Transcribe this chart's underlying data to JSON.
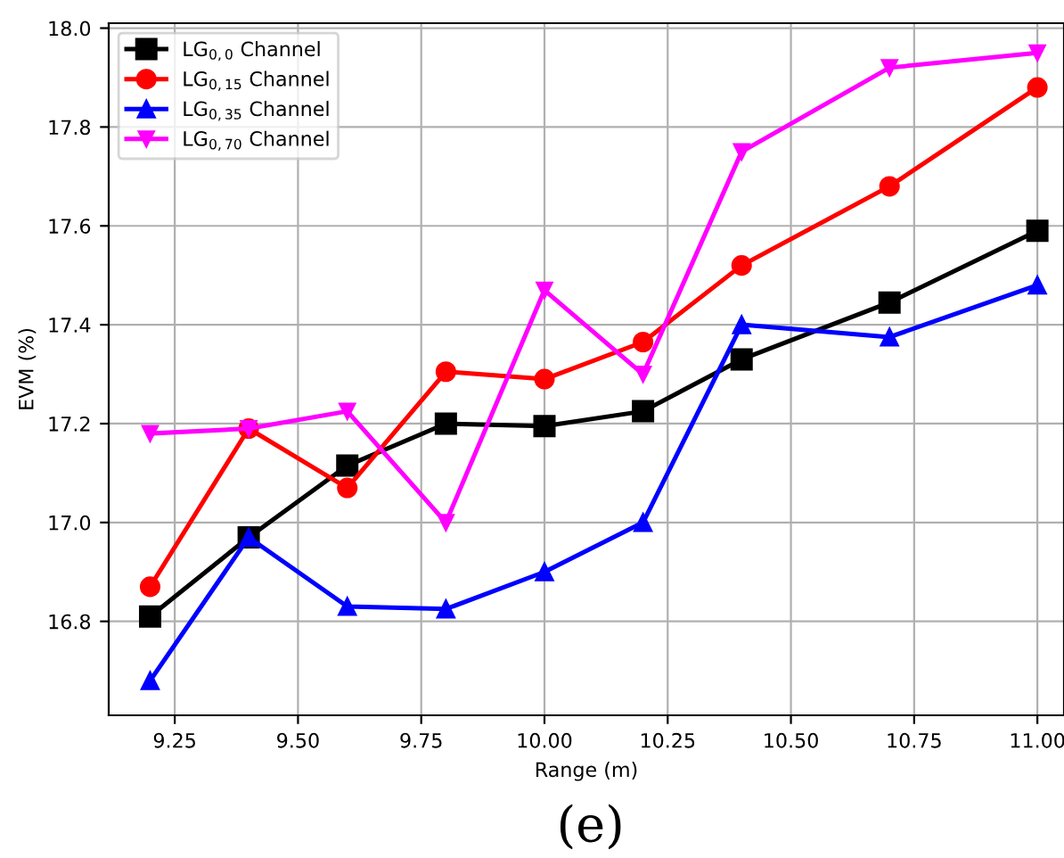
{
  "chart_data": {
    "type": "line",
    "xlabel": "Range (m)",
    "ylabel": "EVM (%)",
    "annotations": [
      "(e)"
    ],
    "x": [
      9.2,
      9.4,
      9.6,
      9.8,
      10.0,
      10.2,
      10.4,
      10.7,
      11.0
    ],
    "xlim": [
      9.116,
      11.054
    ],
    "ylim": [
      16.61,
      18.01
    ],
    "xticks": [
      {
        "value": 9.25,
        "label": "9.25"
      },
      {
        "value": 9.5,
        "label": "9.50"
      },
      {
        "value": 9.75,
        "label": "9.75"
      },
      {
        "value": 10.0,
        "label": "10.00"
      },
      {
        "value": 10.25,
        "label": "10.25"
      },
      {
        "value": 10.5,
        "label": "10.50"
      },
      {
        "value": 10.75,
        "label": "10.75"
      },
      {
        "value": 11.0,
        "label": "11.00"
      }
    ],
    "yticks": [
      {
        "value": 16.8,
        "label": "16.8"
      },
      {
        "value": 17.0,
        "label": "17.0"
      },
      {
        "value": 17.2,
        "label": "17.2"
      },
      {
        "value": 17.4,
        "label": "17.4"
      },
      {
        "value": 17.6,
        "label": "17.6"
      },
      {
        "value": 17.8,
        "label": "17.8"
      },
      {
        "value": 18.0,
        "label": "18.0"
      }
    ],
    "grid": true,
    "legend": "top left",
    "line_style": "solid",
    "series": [
      {
        "name": "LG$_{0,0}$ Channel",
        "color": "#000000",
        "marker": "square",
        "values": [
          16.81,
          16.97,
          17.115,
          17.2,
          17.195,
          17.225,
          17.33,
          17.445,
          17.59
        ]
      },
      {
        "name": "LG$_{0,15}$ Channel",
        "color": "#ff0000",
        "marker": "circle",
        "values": [
          16.87,
          17.19,
          17.07,
          17.305,
          17.29,
          17.365,
          17.52,
          17.68,
          17.88
        ]
      },
      {
        "name": "LG$_{0,35}$ Channel",
        "color": "#0000ff",
        "marker": "triangle",
        "values": [
          16.68,
          16.97,
          16.83,
          16.825,
          16.9,
          17.0,
          17.4,
          17.375,
          17.48
        ]
      },
      {
        "name": "LG$_{0,70}$ Channel",
        "color": "#ff00ff",
        "marker": "triangle_down",
        "values": [
          17.18,
          17.19,
          17.225,
          17.0,
          17.47,
          17.3,
          17.75,
          17.92,
          17.95
        ]
      }
    ]
  }
}
